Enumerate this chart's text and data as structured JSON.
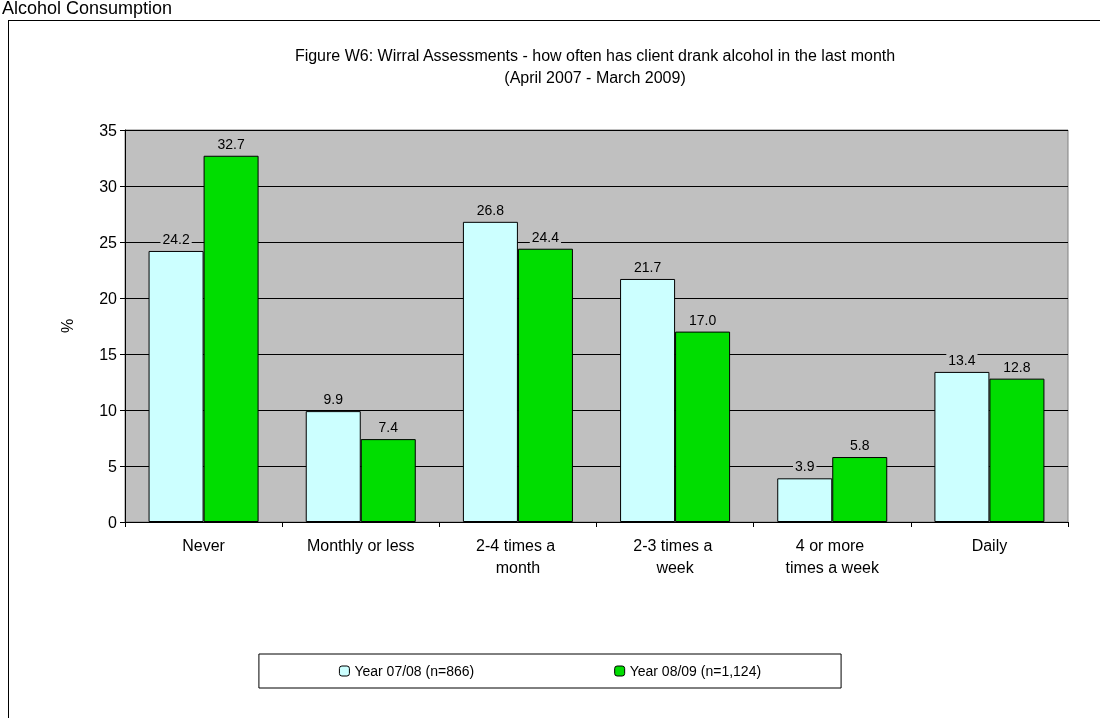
{
  "chart_data": {
    "type": "bar",
    "title": "Figure W6: Wirral Assessments - how often has client drank alcohol in the last month",
    "subtitle": "(April 2007 - March 2009)",
    "ylabel": "%",
    "annotations": [
      "Alcohol Consumption"
    ],
    "categories": [
      "Never",
      "Monthly or less",
      "2-4 times a month",
      "2-3 times a week",
      "4 or more times a week",
      "Daily"
    ],
    "series": [
      {
        "name": "Year 07/08 (n=866)",
        "color": "#ccffff",
        "values": [
          24.2,
          9.9,
          26.8,
          21.7,
          3.9,
          13.4
        ],
        "value_labels": [
          "24.2",
          "9.9",
          "26.8",
          "21.7",
          "3.9",
          "13.4"
        ]
      },
      {
        "name": "Year 08/09 (n=1,124)",
        "color": "#00dd00",
        "values": [
          32.7,
          7.4,
          24.4,
          17.0,
          5.8,
          12.8
        ],
        "value_labels": [
          "32.7",
          "7.4",
          "24.4",
          "17.0",
          "5.8",
          "12.8"
        ]
      }
    ],
    "ylim": [
      0,
      35
    ],
    "yticks": [
      0,
      5,
      10,
      15,
      20,
      25,
      30,
      35
    ],
    "grid": "y",
    "legend": "bottom"
  }
}
